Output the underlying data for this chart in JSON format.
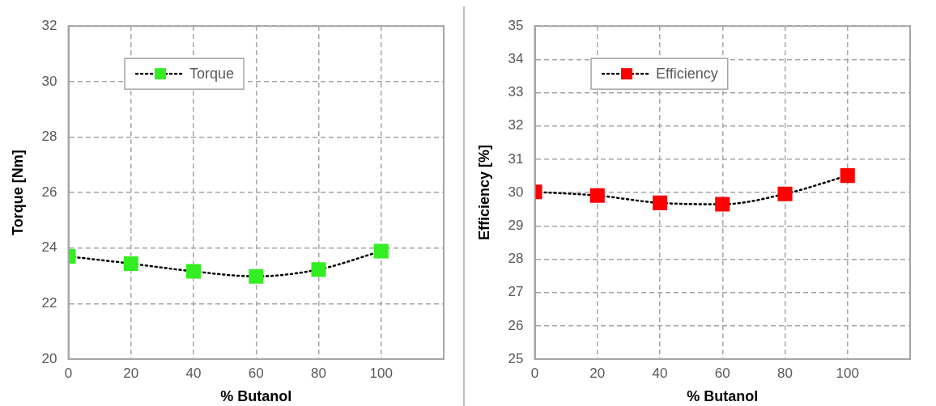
{
  "chart_data": [
    {
      "type": "line",
      "xlabel": "% Butanol",
      "ylabel": "Torque [Nm]",
      "x": [
        0,
        20,
        40,
        60,
        80,
        100
      ],
      "series": [
        {
          "name": "Torque",
          "color": "#33ee22",
          "values": [
            23.7,
            23.44,
            23.16,
            22.98,
            23.23,
            23.89
          ]
        }
      ],
      "xlim": [
        0,
        120
      ],
      "xticks": [
        0,
        20,
        40,
        60,
        80,
        100
      ],
      "ylim": [
        20,
        32
      ],
      "yticks": [
        20,
        22,
        24,
        26,
        28,
        30,
        32
      ],
      "grid": true,
      "legend": "top left",
      "marker": "square",
      "line_style": "dotted"
    },
    {
      "type": "line",
      "xlabel": "% Butanol",
      "ylabel": "Efficiency [%]",
      "x": [
        0,
        20,
        40,
        60,
        80,
        100
      ],
      "series": [
        {
          "name": "Efficiency",
          "color": "#ff0000",
          "values": [
            30.02,
            29.91,
            29.69,
            29.65,
            29.96,
            30.51
          ]
        }
      ],
      "xlim": [
        0,
        120
      ],
      "xticks": [
        0,
        20,
        40,
        60,
        80,
        100
      ],
      "ylim": [
        25,
        35
      ],
      "yticks": [
        25,
        26,
        27,
        28,
        29,
        30,
        31,
        32,
        33,
        34,
        35
      ],
      "grid": true,
      "legend": "top left",
      "marker": "square",
      "line_style": "dotted"
    }
  ]
}
